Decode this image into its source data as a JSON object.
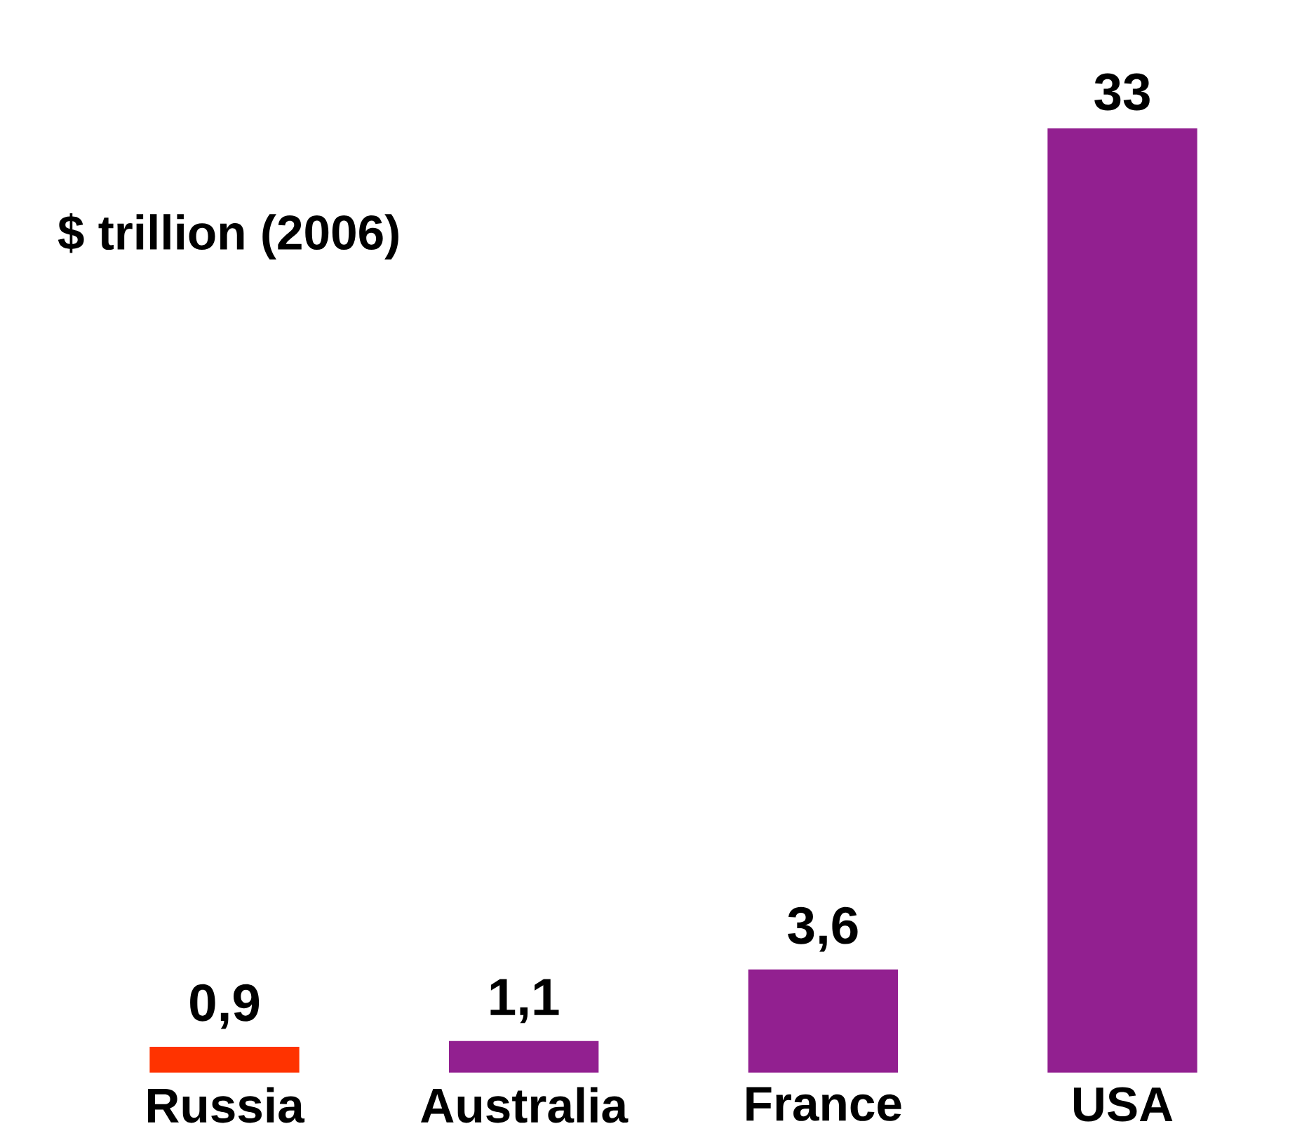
{
  "chart_data": {
    "type": "bar",
    "ylabel": "$ trillion (2006)",
    "categories": [
      "Russia",
      "Australia",
      "France",
      "USA"
    ],
    "values": [
      0.9,
      1.1,
      3.6,
      33
    ],
    "value_labels": [
      "0,9",
      "1,1",
      "3,6",
      "33"
    ],
    "colors": [
      "#ff3300",
      "#922090",
      "#922090",
      "#922090"
    ]
  }
}
